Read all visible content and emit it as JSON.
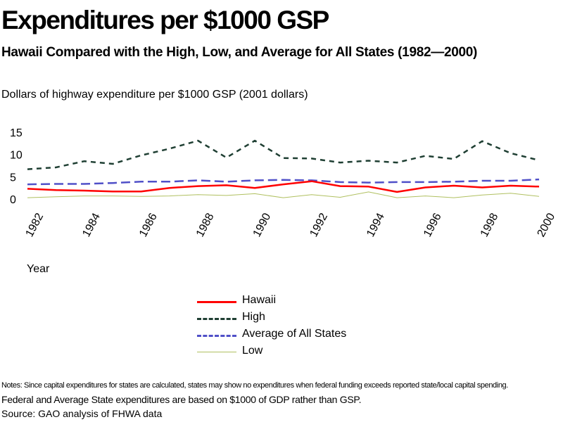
{
  "header": {
    "title": "Expenditures per $1000 GSP",
    "subtitle": "Hawaii Compared with the High, Low, and Average for All States (1982—2000)",
    "units": "Dollars of highway expenditure per $1000 GSP  (2001 dollars)"
  },
  "chart_data": {
    "type": "line",
    "title": "Expenditures per $1000 GSP",
    "subtitle": "Hawaii Compared with the High, Low, and Average for All States (1982—2000)",
    "ylabel": "Dollars of highway expenditure per $1000 GSP  (2001 dollars)",
    "xlabel": "Year",
    "x": [
      1982,
      1983,
      1984,
      1985,
      1986,
      1987,
      1988,
      1989,
      1990,
      1991,
      1992,
      1993,
      1994,
      1995,
      1996,
      1997,
      1998,
      1999,
      2000
    ],
    "x_tick_labels": [
      "1982",
      "1984",
      "1986",
      "1988",
      "1990",
      "1992",
      "1994",
      "1996",
      "1998",
      "2000"
    ],
    "y_ticks": [
      0,
      5,
      10,
      15
    ],
    "ylim": [
      0,
      15
    ],
    "xlim": [
      1982,
      2000
    ],
    "grid": false,
    "legend_position": "bottom",
    "series": [
      {
        "name": "Hawaii",
        "color": "#ff0000",
        "style": "solid",
        "values": [
          2.3,
          2.0,
          1.9,
          1.7,
          1.7,
          2.5,
          2.9,
          3.1,
          2.5,
          3.3,
          4.0,
          2.9,
          2.8,
          1.6,
          2.6,
          3.0,
          2.6,
          3.0,
          2.8
        ]
      },
      {
        "name": "High",
        "color": "#1f3f33",
        "style": "dashed",
        "values": [
          6.7,
          7.1,
          8.5,
          7.9,
          9.8,
          11.3,
          13.1,
          9.3,
          13.1,
          9.2,
          9.1,
          8.2,
          8.6,
          8.2,
          9.7,
          9.0,
          13.0,
          10.3,
          8.7
        ]
      },
      {
        "name": "Average of All States",
        "color": "#5050c8",
        "style": "longdash",
        "values": [
          3.3,
          3.4,
          3.4,
          3.6,
          3.9,
          3.9,
          4.2,
          3.9,
          4.2,
          4.3,
          4.2,
          3.8,
          3.7,
          3.8,
          3.8,
          3.9,
          4.1,
          4.1,
          4.4
        ]
      },
      {
        "name": "Low",
        "color": "#b0c060",
        "style": "solid-thin",
        "values": [
          0.3,
          0.5,
          0.7,
          0.7,
          0.6,
          0.7,
          1.0,
          0.8,
          1.2,
          0.3,
          1.0,
          0.4,
          1.6,
          0.3,
          0.7,
          0.3,
          0.9,
          1.3,
          0.6
        ]
      }
    ]
  },
  "legend": {
    "items": [
      {
        "label": "Hawaii"
      },
      {
        "label": "High"
      },
      {
        "label": "Average of All States"
      },
      {
        "label": "Low"
      }
    ]
  },
  "footer": {
    "notes": "Notes: Since capital expenditures for states are calculated, states may show no expenditures when federal funding exceeds reported state/local capital spending.",
    "notes_line2": "Federal and Average State expenditures are based on $1000 of GDP rather than GSP.",
    "source": "Source: GAO  analysis of FHWA data"
  }
}
